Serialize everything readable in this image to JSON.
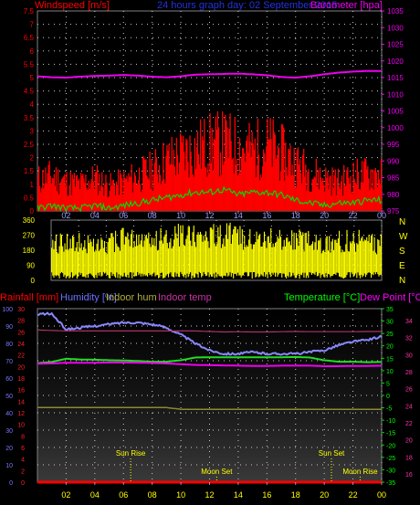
{
  "chart_data": [
    {
      "type": "bar",
      "title": "24 hours graph day: 02 September 2015",
      "left_axis_label": "Windspeed [m/s]",
      "right_axis_label": "Barometer [hpa]",
      "x_ticks": [
        "02",
        "04",
        "06",
        "08",
        "10",
        "12",
        "14",
        "16",
        "18",
        "20",
        "22",
        "00"
      ],
      "wind_ticks": [
        "0",
        "0.5",
        "1",
        "1.5",
        "2",
        "2.5",
        "3",
        "3.5",
        "4",
        "4.5",
        "5",
        "5.5",
        "6",
        "6.5",
        "7",
        "7.5"
      ],
      "wind_ylim": [
        0,
        7.5
      ],
      "baro_ticks": [
        "975",
        "980",
        "985",
        "990",
        "995",
        "1000",
        "1005",
        "1010",
        "1015",
        "1020",
        "1025",
        "1030",
        "1035"
      ],
      "baro_ylim": [
        975,
        1035
      ],
      "hours": [
        0,
        1,
        2,
        3,
        4,
        5,
        6,
        7,
        8,
        9,
        10,
        11,
        12,
        13,
        14,
        15,
        16,
        17,
        18,
        19,
        20,
        21,
        22,
        23,
        24
      ],
      "gust": [
        1.6,
        1.8,
        1.5,
        1.4,
        1.7,
        1.3,
        1.5,
        1.8,
        2.1,
        2.6,
        2.9,
        3.2,
        3.4,
        3.5,
        3.3,
        3.1,
        3.4,
        3.0,
        2.5,
        2.0,
        1.7,
        1.5,
        1.8,
        1.9,
        2.0
      ],
      "average": [
        0.1,
        0.2,
        0.1,
        0.1,
        0.2,
        0.1,
        0.2,
        0.3,
        0.4,
        0.5,
        0.6,
        0.7,
        0.7,
        0.8,
        0.6,
        0.7,
        0.7,
        0.6,
        0.4,
        0.3,
        0.2,
        0.3,
        0.3,
        0.4,
        0.4
      ],
      "barometer": [
        1015.4,
        1015.1,
        1015.0,
        1015.3,
        1015.5,
        1015.6,
        1015.8,
        1015.6,
        1015.3,
        1015.1,
        1015.4,
        1015.9,
        1016.0,
        1016.1,
        1016.2,
        1016.0,
        1015.7,
        1015.2,
        1015.0,
        1015.4,
        1016.0,
        1016.5,
        1016.8,
        1017.0,
        1017.0
      ],
      "grid": true
    },
    {
      "type": "bar",
      "ylabel": "Wind direction",
      "y_ticks": [
        "0",
        "90",
        "180",
        "270",
        "360"
      ],
      "ylim": [
        0,
        360
      ],
      "compass": [
        "N",
        "W",
        "S",
        "E",
        "N"
      ],
      "x_ticks": [
        "02",
        "04",
        "06",
        "08",
        "10",
        "12",
        "14",
        "16",
        "18",
        "20",
        "22",
        "00"
      ],
      "hours": [
        0,
        1,
        2,
        3,
        4,
        5,
        6,
        7,
        8,
        9,
        10,
        11,
        12,
        13,
        14,
        15,
        16,
        17,
        18,
        19,
        20,
        21,
        22,
        23,
        24
      ],
      "direction_peak": [
        270,
        300,
        290,
        260,
        280,
        320,
        310,
        290,
        330,
        340,
        350,
        360,
        340,
        350,
        330,
        340,
        320,
        300,
        310,
        290,
        280,
        300,
        310,
        290,
        280
      ],
      "grid": true
    },
    {
      "type": "line",
      "labels": {
        "rain": "Rainfall [mm]",
        "humidity": "Humidity [%]",
        "indoor_hum": "Indoor hum",
        "indoor_temp": "Indoor temp",
        "temperature": "Temperature [°C]",
        "dew_point": "Dew Point [°C]"
      },
      "x_ticks": [
        "02",
        "04",
        "06",
        "08",
        "10",
        "12",
        "14",
        "16",
        "18",
        "20",
        "22",
        "00"
      ],
      "rain_ticks": [
        "0",
        "2",
        "4",
        "6",
        "8",
        "10",
        "12",
        "14",
        "16",
        "18",
        "20",
        "22",
        "24",
        "26",
        "28",
        "30"
      ],
      "hum_ticks": [
        "0",
        "10",
        "20",
        "30",
        "40",
        "50",
        "60",
        "70",
        "80",
        "90",
        "100"
      ],
      "temp_ticks": [
        "-35",
        "-30",
        "-25",
        "-20",
        "-15",
        "-10",
        "-5",
        "0",
        "5",
        "10",
        "15",
        "20",
        "25",
        "30",
        "35"
      ],
      "itemp_ticks": [
        "16",
        "18",
        "20",
        "22",
        "24",
        "26",
        "28",
        "30",
        "32",
        "34"
      ],
      "rain_ylim": [
        0,
        30
      ],
      "hum_ylim": [
        0,
        100
      ],
      "temp_ylim": [
        -35,
        35
      ],
      "events": [
        {
          "label": "Sun Rise",
          "hour": 6.5,
          "row": "upper"
        },
        {
          "label": "Moon Set",
          "hour": 12.5,
          "row": "lower"
        },
        {
          "label": "Sun Set",
          "hour": 20.5,
          "row": "upper"
        },
        {
          "label": "Moon Rise",
          "hour": 22.5,
          "row": "lower"
        }
      ],
      "hours": [
        0,
        1,
        2,
        3,
        4,
        5,
        6,
        7,
        8,
        9,
        10,
        11,
        12,
        13,
        14,
        15,
        16,
        17,
        18,
        19,
        20,
        21,
        22,
        23,
        24
      ],
      "series": [
        {
          "name": "Humidity [%]",
          "color": "#8888ff",
          "values": [
            97,
            97,
            88,
            89,
            90,
            91,
            92,
            92,
            91,
            89,
            85,
            80,
            76,
            74,
            74,
            75,
            74,
            74,
            74,
            75,
            76,
            79,
            81,
            82,
            84
          ]
        },
        {
          "name": "Temperature [°C]",
          "color": "#22dd22",
          "values": [
            13.0,
            13.5,
            14.8,
            14.5,
            14.4,
            14.2,
            14.1,
            13.9,
            13.6,
            13.6,
            14.2,
            15.3,
            15.4,
            15.4,
            15.4,
            15.4,
            15.4,
            15.4,
            15.5,
            15.3,
            14.2,
            13.6,
            13.6,
            13.4,
            13.5
          ]
        },
        {
          "name": "Dew Point [°C]",
          "color": "#ee00ee",
          "values": [
            12.8,
            12.9,
            13.2,
            13.2,
            13.2,
            13.3,
            13.3,
            13.2,
            13.1,
            12.9,
            12.6,
            12.3,
            12.2,
            12.1,
            12.0,
            11.9,
            11.9,
            12.0,
            12.0,
            12.0,
            11.8,
            11.8,
            11.9,
            11.9,
            12.0
          ]
        },
        {
          "name": "Indoor hum",
          "color": "#8a8a30",
          "values": [
            43,
            43,
            43,
            43,
            43,
            43,
            43,
            43,
            43,
            43,
            42,
            42,
            42,
            42,
            42,
            42,
            42,
            42,
            42,
            42,
            42,
            42,
            42,
            42,
            42
          ]
        },
        {
          "name": "Indoor temp",
          "color": "#aa3366",
          "values": [
            26.4,
            26.2,
            26.0,
            26.0,
            26.0,
            26.0,
            26.0,
            26.0,
            26.0,
            26.0,
            26.0,
            26.0,
            25.8,
            25.6,
            25.7,
            25.6,
            25.6,
            25.7,
            25.8,
            25.7,
            25.7,
            25.7,
            25.7,
            25.8,
            25.8
          ]
        },
        {
          "name": "Rainfall [mm]",
          "color": "#ff0000",
          "values": [
            0,
            0,
            0,
            0,
            0,
            0,
            0,
            0,
            0,
            0,
            0,
            0,
            0,
            0,
            0,
            0,
            0,
            0,
            0,
            0,
            0,
            0,
            0,
            0,
            0
          ]
        }
      ],
      "grid": true
    }
  ]
}
